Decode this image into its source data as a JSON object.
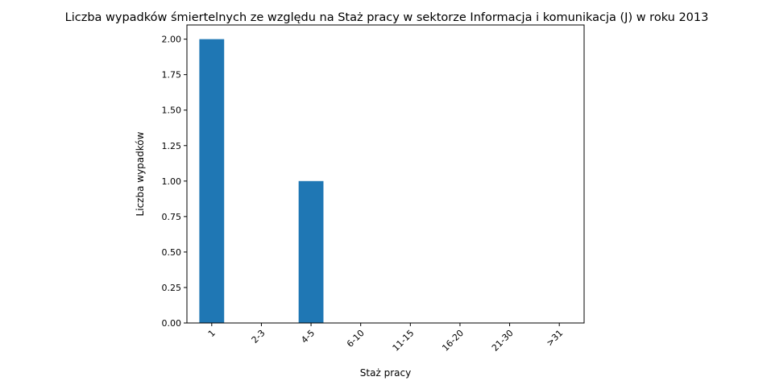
{
  "chart_data": {
    "type": "bar",
    "title": "Liczba wypadków śmiertelnych ze względu na Staż pracy w sektorze Informacja i komunikacja (J)   w roku 2013",
    "xlabel": "Staż pracy",
    "ylabel": "Liczba wypadków",
    "categories": [
      "1",
      "2-3",
      "4-5",
      "6-10",
      "11-15",
      "16-20",
      "21-30",
      ">31"
    ],
    "values": [
      2,
      0,
      1,
      0,
      0,
      0,
      0,
      0
    ],
    "ylim": [
      0,
      2.1
    ],
    "yticks": [
      "0.00",
      "0.25",
      "0.50",
      "0.75",
      "1.00",
      "1.25",
      "1.50",
      "1.75",
      "2.00"
    ],
    "bar_color": "#1f77b4",
    "grid": false,
    "legend": false
  }
}
